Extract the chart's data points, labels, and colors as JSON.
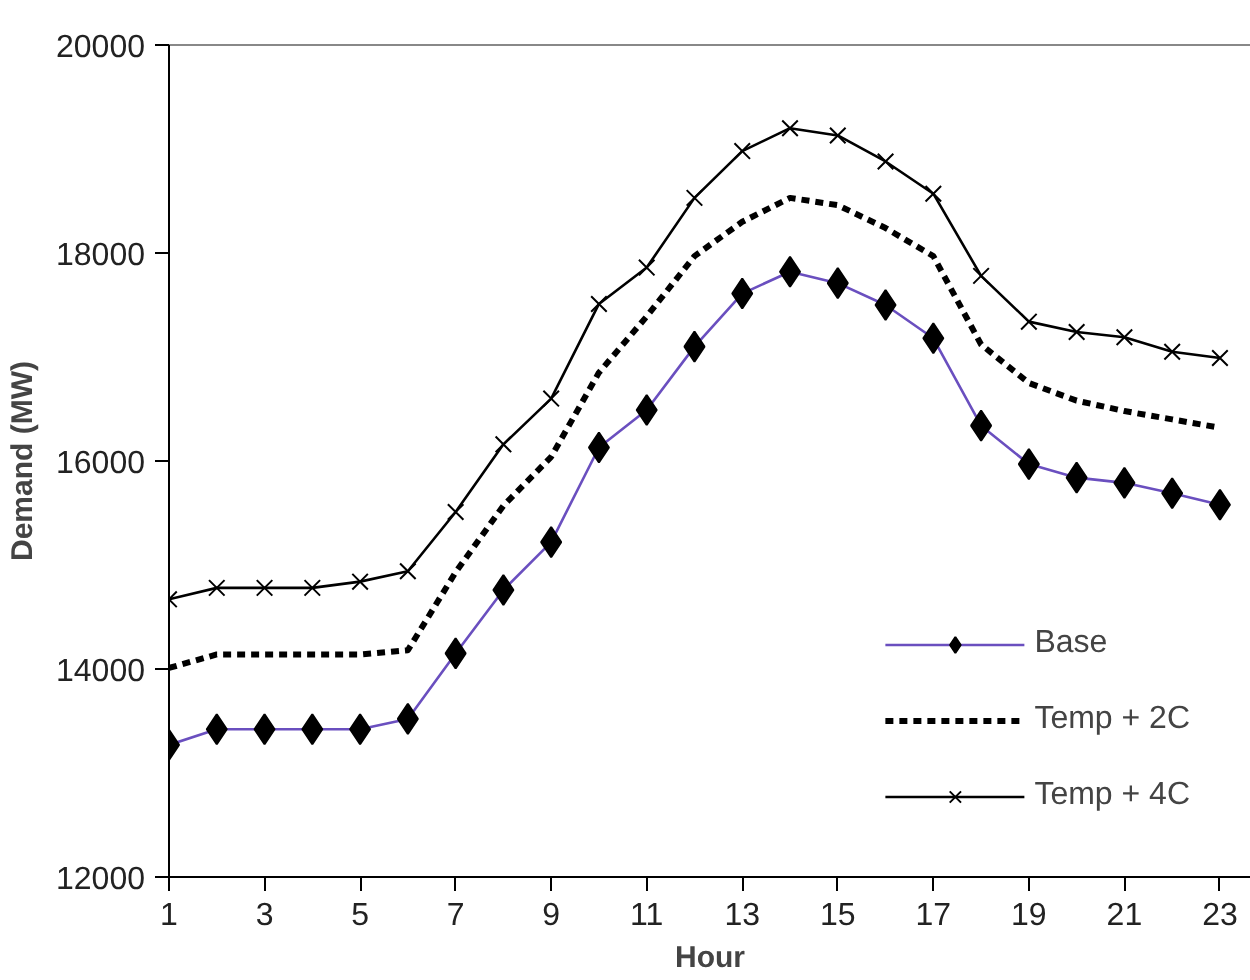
{
  "chart_data": {
    "type": "line",
    "xlabel": "Hour",
    "ylabel": "Demand (MW)",
    "x": [
      1,
      2,
      3,
      4,
      5,
      6,
      7,
      8,
      9,
      10,
      11,
      12,
      13,
      14,
      15,
      16,
      17,
      18,
      19,
      20,
      21,
      22,
      23
    ],
    "xlim": [
      1,
      23.65
    ],
    "xticks": [
      1,
      3,
      5,
      7,
      9,
      11,
      13,
      15,
      17,
      19,
      21,
      23
    ],
    "ylim": [
      12000,
      20000
    ],
    "yticks": [
      12000,
      14000,
      16000,
      18000,
      20000
    ],
    "grid": false,
    "legend": "bottom right",
    "series": [
      {
        "name": "Base",
        "color": "#6a4fbf",
        "marker": "diamond",
        "line_style": "solid",
        "values": [
          13270,
          13420,
          13420,
          13420,
          13420,
          13520,
          14150,
          14760,
          15220,
          16130,
          16490,
          17100,
          17610,
          17820,
          17710,
          17500,
          17180,
          16340,
          15970,
          15840,
          15790,
          15690,
          15580
        ]
      },
      {
        "name": "Temp + 2C",
        "color": "#000000",
        "marker": "none",
        "line_style": "dotted",
        "values": [
          14010,
          14140,
          14140,
          14140,
          14140,
          14180,
          14930,
          15570,
          16040,
          16850,
          17390,
          17970,
          18300,
          18530,
          18460,
          18240,
          17970,
          17120,
          16750,
          16580,
          16480,
          16400,
          16320
        ]
      },
      {
        "name": "Temp + 4C",
        "color": "#000000",
        "marker": "cross",
        "line_style": "solid",
        "values": [
          14670,
          14780,
          14780,
          14780,
          14840,
          14940,
          15510,
          16160,
          16600,
          17510,
          17860,
          18530,
          18980,
          19200,
          19130,
          18880,
          18570,
          17780,
          17340,
          17240,
          17190,
          17050,
          16990
        ]
      }
    ]
  }
}
